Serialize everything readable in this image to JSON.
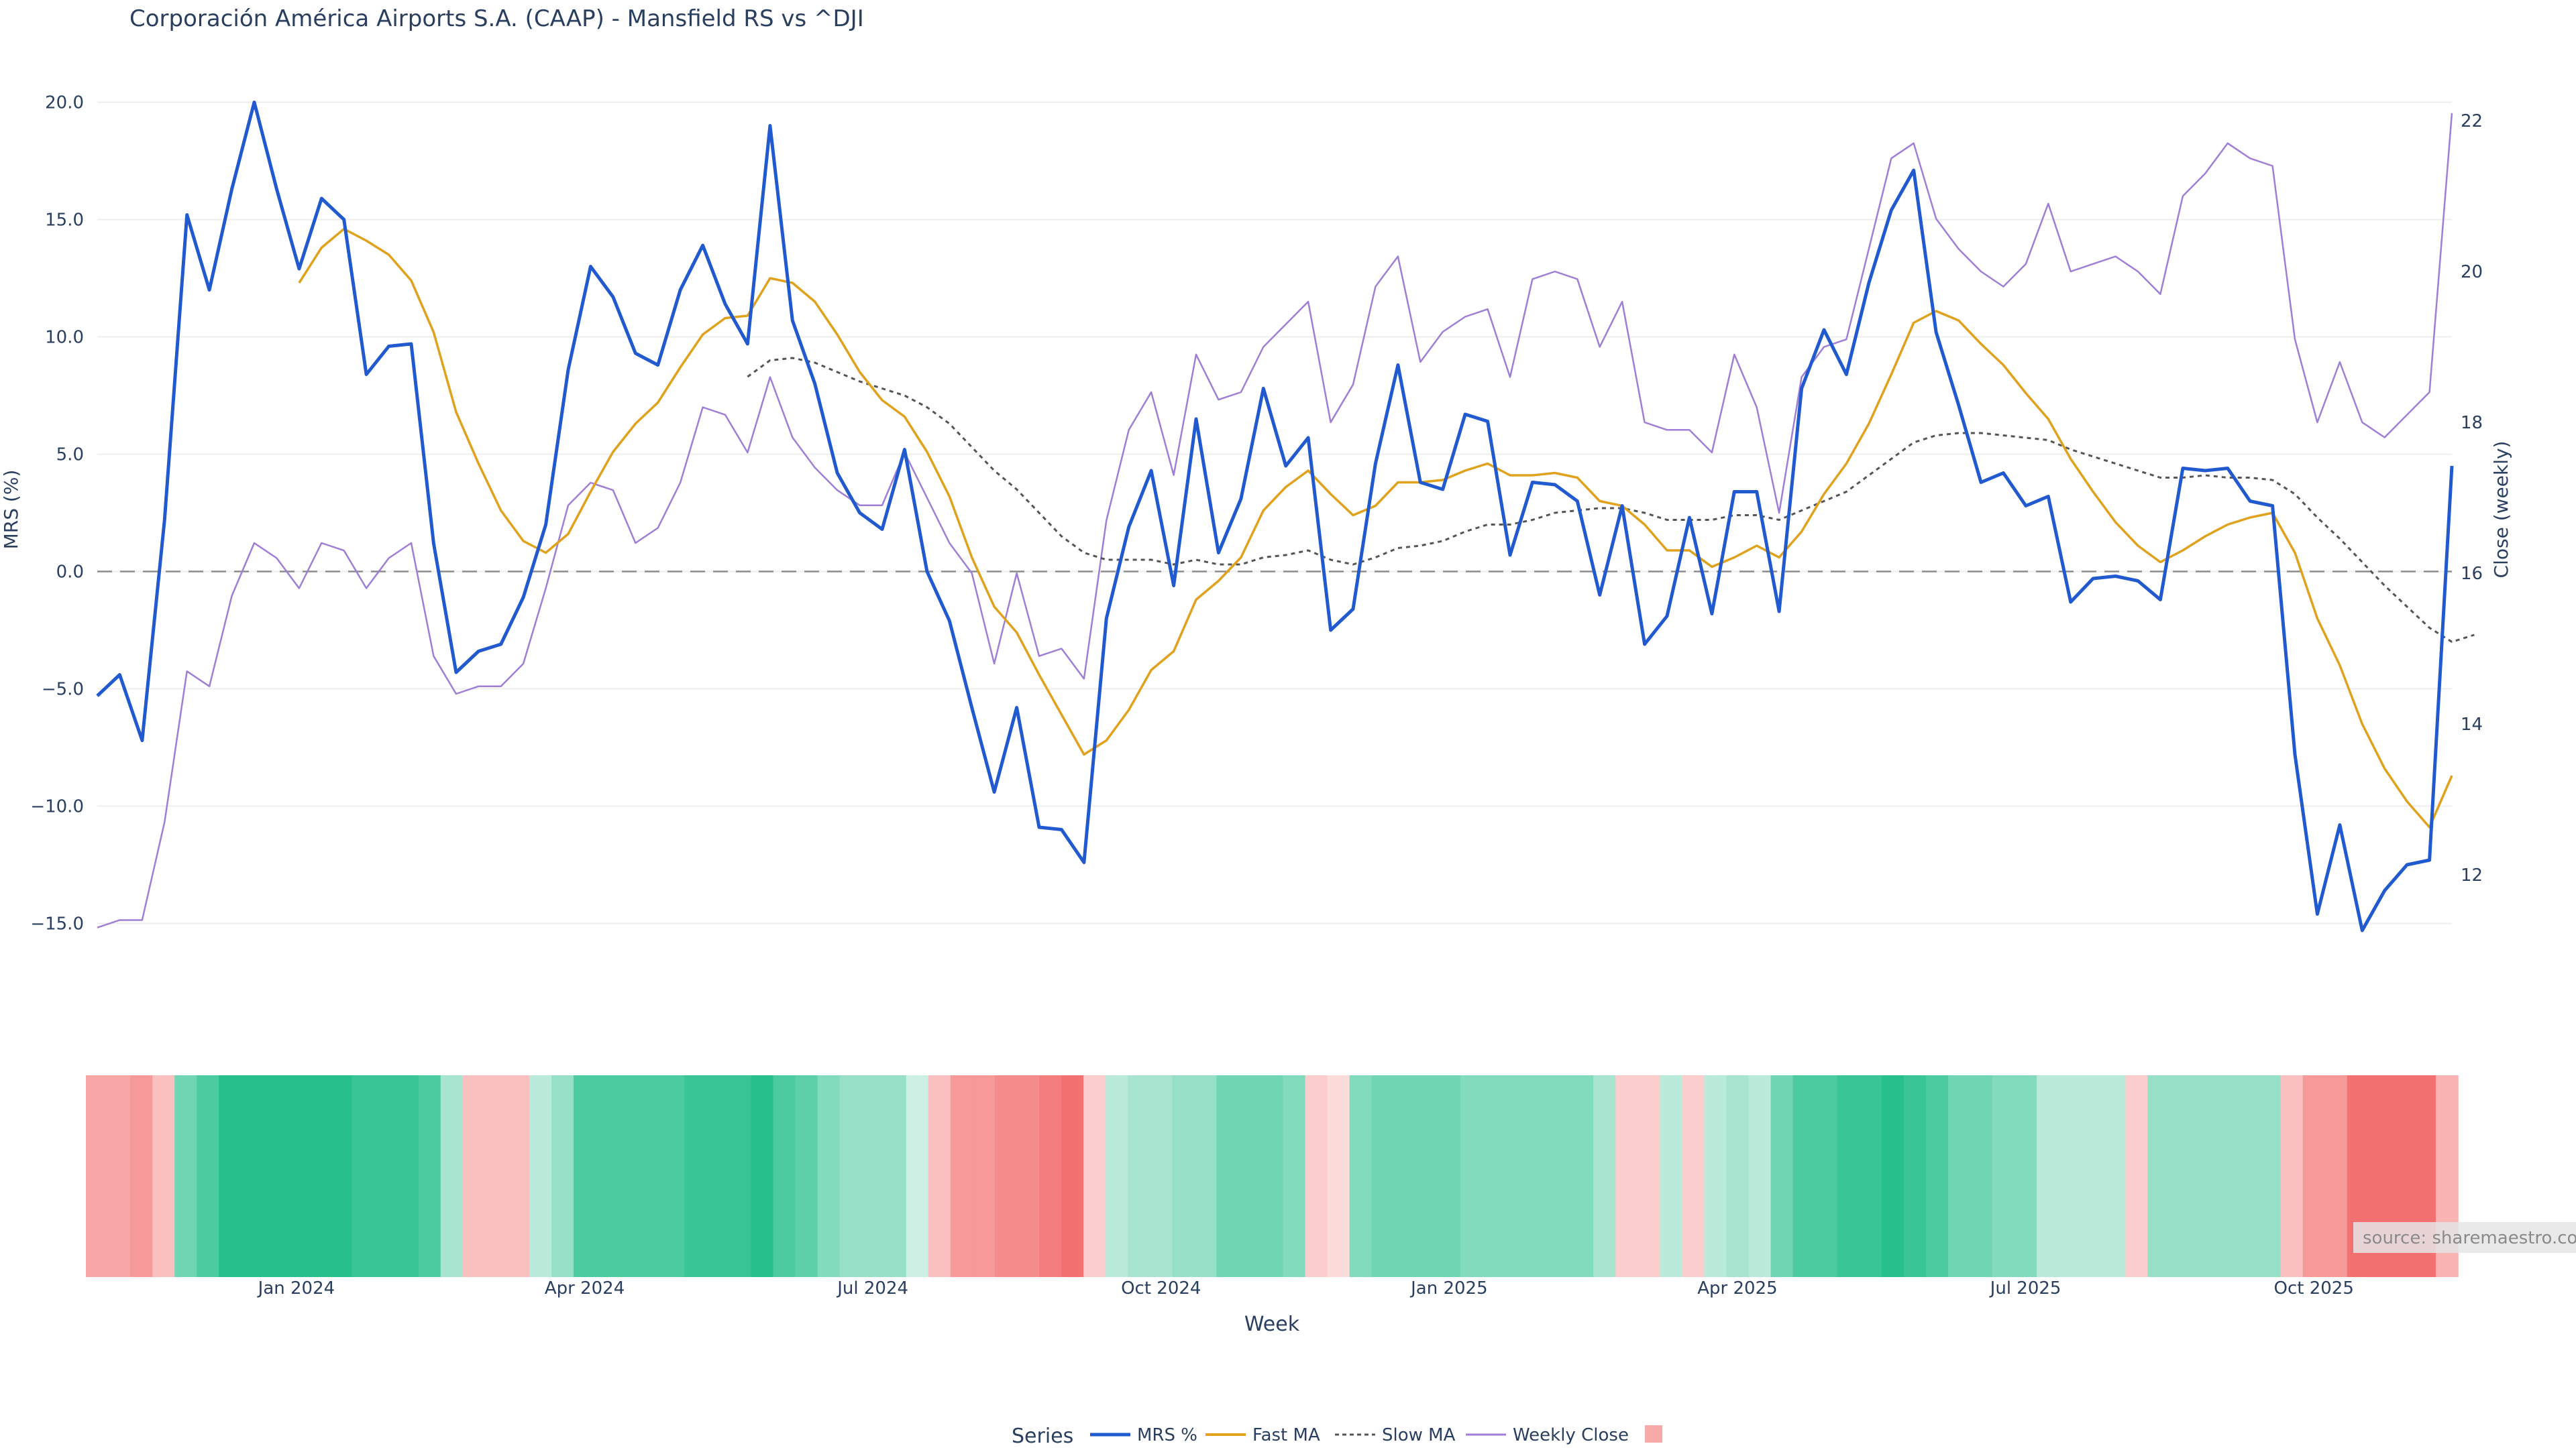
{
  "title": "Corporación América Airports S.A. (CAAP) - Mansfield RS vs ^DJI",
  "source_label": "source: sharemaestro.com",
  "colors": {
    "mrs": "#2159cf",
    "fast": "#e0a21d",
    "slow": "#555555",
    "close": "#9f7ed6",
    "zero": "#8c8c8c",
    "grid": "#eeeeee",
    "text": "#2a3f5f",
    "strong_green": "#27c08c",
    "strong_red": "#f26464"
  },
  "chart_data": {
    "type": "line",
    "title": "Corporación América Airports S.A. (CAAP) - Mansfield RS vs ^DJI",
    "xlabel": "Week",
    "ylabel": "MRS (%)",
    "y2label": "Close (weekly)",
    "ylim": [
      -15.5,
      20.5
    ],
    "y2lim": [
      11.2,
      22.4
    ],
    "yticks": [
      "20.0",
      "15.0",
      "10.0",
      "5.0",
      "0.0",
      "−5.0",
      "−10.0",
      "−15.0"
    ],
    "y2ticks": [
      "22",
      "20",
      "18",
      "16",
      "14",
      "12"
    ],
    "x_tick_labels": [
      "Jan 2024",
      "Apr 2024",
      "Jul 2024",
      "Oct 2024",
      "Jan 2025",
      "Apr 2025",
      "Jul 2025",
      "Oct 2025"
    ],
    "x_tick_index": [
      9.5,
      22.5,
      35.5,
      48.5,
      61.5,
      74.5,
      87.5,
      100.5
    ],
    "grid": true,
    "legend_position": "bottom-center",
    "legend_title": "Series",
    "series": [
      {
        "name": "MRS %",
        "values": [
          -5.3,
          -4.4,
          -7.2,
          2.2,
          15.2,
          12.0,
          16.3,
          20.0,
          16.3,
          12.9,
          15.9,
          15.0,
          8.4,
          9.6,
          9.7,
          1.2,
          -4.3,
          -3.4,
          -3.1,
          -1.1,
          2.0,
          8.6,
          13.0,
          11.7,
          9.3,
          8.8,
          12.0,
          13.9,
          11.4,
          9.7,
          19.0,
          10.7,
          8.0,
          4.2,
          2.5,
          1.8,
          5.2,
          0.0,
          -2.1,
          -5.8,
          -9.4,
          -5.8,
          -10.9,
          -11.0,
          -12.4,
          -2.0,
          1.9,
          4.3,
          -0.6,
          6.5,
          0.8,
          3.1,
          7.8,
          4.5,
          5.7,
          -2.5,
          -1.6,
          4.6,
          8.8,
          3.8,
          3.5,
          6.7,
          6.4,
          0.7,
          3.8,
          3.7,
          3.0,
          -1.0,
          2.8,
          -3.1,
          -1.9,
          2.3,
          -1.8,
          3.4,
          3.4,
          -1.7,
          7.8,
          10.3,
          8.4,
          12.3,
          15.4,
          17.1,
          10.2,
          7.1,
          3.8,
          4.2,
          2.8,
          3.2,
          -1.3,
          -0.3,
          -0.2,
          -0.4,
          -1.2,
          4.4,
          4.3,
          4.4,
          3.0,
          2.8,
          -7.8,
          -14.6,
          -10.8,
          -15.3,
          -13.6,
          -12.5,
          -12.3,
          4.5
        ]
      },
      {
        "name": "Fast MA",
        "values": [
          null,
          null,
          null,
          null,
          null,
          null,
          null,
          null,
          null,
          12.3,
          13.8,
          14.6,
          14.1,
          13.5,
          12.4,
          10.2,
          6.8,
          4.6,
          2.6,
          1.3,
          0.8,
          1.6,
          3.4,
          5.1,
          6.3,
          7.2,
          8.7,
          10.1,
          10.8,
          10.9,
          12.5,
          12.3,
          11.5,
          10.1,
          8.5,
          7.3,
          6.6,
          5.1,
          3.2,
          0.6,
          -1.5,
          -2.6,
          -4.4,
          -6.1,
          -7.8,
          -7.2,
          -5.9,
          -4.2,
          -3.4,
          -1.2,
          -0.4,
          0.6,
          2.6,
          3.6,
          4.3,
          3.3,
          2.4,
          2.8,
          3.8,
          3.8,
          3.9,
          4.3,
          4.6,
          4.1,
          4.1,
          4.2,
          4.0,
          3.0,
          2.8,
          2.0,
          0.9,
          0.9,
          0.2,
          0.6,
          1.1,
          0.6,
          1.7,
          3.3,
          4.6,
          6.3,
          8.4,
          10.6,
          11.1,
          10.7,
          9.7,
          8.8,
          7.6,
          6.5,
          4.8,
          3.4,
          2.1,
          1.1,
          0.4,
          0.9,
          1.5,
          2.0,
          2.3,
          2.5,
          0.8,
          -2.0,
          -4.0,
          -6.5,
          -8.4,
          -9.8,
          -10.9,
          -8.7
        ]
      },
      {
        "name": "Slow MA",
        "values": [
          null,
          null,
          null,
          null,
          null,
          null,
          null,
          null,
          null,
          null,
          null,
          null,
          null,
          null,
          null,
          null,
          null,
          null,
          null,
          null,
          null,
          null,
          null,
          null,
          null,
          null,
          null,
          null,
          null,
          8.3,
          9.0,
          9.1,
          8.9,
          8.5,
          8.1,
          7.8,
          7.5,
          7.0,
          6.3,
          5.3,
          4.3,
          3.5,
          2.5,
          1.5,
          0.8,
          0.5,
          0.5,
          0.5,
          0.3,
          0.5,
          0.3,
          0.3,
          0.6,
          0.7,
          0.9,
          0.5,
          0.3,
          0.6,
          1.0,
          1.1,
          1.3,
          1.7,
          2.0,
          2.0,
          2.2,
          2.5,
          2.6,
          2.7,
          2.7,
          2.5,
          2.2,
          2.2,
          2.2,
          2.4,
          2.4,
          2.2,
          2.6,
          3.0,
          3.4,
          4.1,
          4.8,
          5.5,
          5.8,
          5.9,
          5.9,
          5.8,
          5.7,
          5.6,
          5.2,
          4.9,
          4.6,
          4.3,
          4.0,
          4.0,
          4.1,
          4.0,
          4.0,
          3.9,
          3.3,
          2.3,
          1.4,
          0.4,
          -0.6,
          -1.5,
          -2.4,
          -3.0,
          -2.7
        ]
      },
      {
        "name": "Weekly Close",
        "values": [
          11.3,
          11.4,
          11.4,
          12.7,
          14.7,
          14.5,
          15.7,
          16.4,
          16.2,
          15.8,
          16.4,
          16.3,
          15.8,
          16.2,
          16.4,
          14.9,
          14.4,
          14.5,
          14.5,
          14.8,
          15.8,
          16.9,
          17.2,
          17.1,
          16.4,
          16.6,
          17.2,
          18.2,
          18.1,
          17.6,
          18.6,
          17.8,
          17.4,
          17.1,
          16.9,
          16.9,
          17.6,
          17.0,
          16.4,
          16.0,
          14.8,
          16.0,
          14.9,
          15.0,
          14.6,
          16.7,
          17.9,
          18.4,
          17.3,
          18.9,
          18.3,
          18.4,
          19.0,
          19.3,
          19.6,
          18.0,
          18.5,
          19.8,
          20.2,
          18.8,
          19.2,
          19.4,
          19.5,
          18.6,
          19.9,
          20.0,
          19.9,
          19.0,
          19.6,
          18.0,
          17.9,
          17.9,
          17.6,
          18.9,
          18.2,
          16.8,
          18.6,
          19.0,
          19.1,
          20.3,
          21.5,
          21.7,
          20.7,
          20.3,
          20.0,
          19.8,
          20.1,
          20.9,
          20.0,
          20.1,
          20.2,
          20.0,
          19.7,
          21.0,
          21.3,
          21.7,
          21.5,
          21.4,
          19.1,
          18.0,
          18.8,
          18.0,
          17.8,
          18.1,
          18.4,
          22.1
        ]
      }
    ],
    "regime_strip": {
      "label": "",
      "values": [
        -0.5,
        -0.5,
        -0.6,
        -0.3,
        0.6,
        0.8,
        1.0,
        1.0,
        1.0,
        1.0,
        1.0,
        1.0,
        0.9,
        0.9,
        0.9,
        0.8,
        0.3,
        -0.3,
        -0.3,
        -0.3,
        0.2,
        0.4,
        0.8,
        0.8,
        0.8,
        0.8,
        0.8,
        0.9,
        0.9,
        0.9,
        1.0,
        0.8,
        0.7,
        0.5,
        0.4,
        0.4,
        0.4,
        0.1,
        -0.3,
        -0.6,
        -0.6,
        -0.7,
        -0.7,
        -0.8,
        -0.9,
        -0.2,
        0.2,
        0.3,
        0.3,
        0.4,
        0.4,
        0.6,
        0.6,
        0.6,
        0.5,
        -0.2,
        -0.1,
        0.5,
        0.6,
        0.6,
        0.6,
        0.6,
        0.5,
        0.5,
        0.5,
        0.5,
        0.5,
        0.5,
        0.3,
        -0.2,
        -0.2,
        0.2,
        -0.2,
        0.2,
        0.3,
        0.2,
        0.6,
        0.8,
        0.8,
        0.9,
        0.9,
        1.0,
        0.9,
        0.8,
        0.6,
        0.6,
        0.5,
        0.5,
        0.2,
        0.2,
        0.2,
        0.2,
        -0.2,
        0.4,
        0.4,
        0.4,
        0.4,
        0.4,
        0.4,
        -0.3,
        -0.6,
        -0.6,
        -0.9,
        -0.9,
        -0.9,
        -0.9,
        -0.4
      ]
    }
  }
}
